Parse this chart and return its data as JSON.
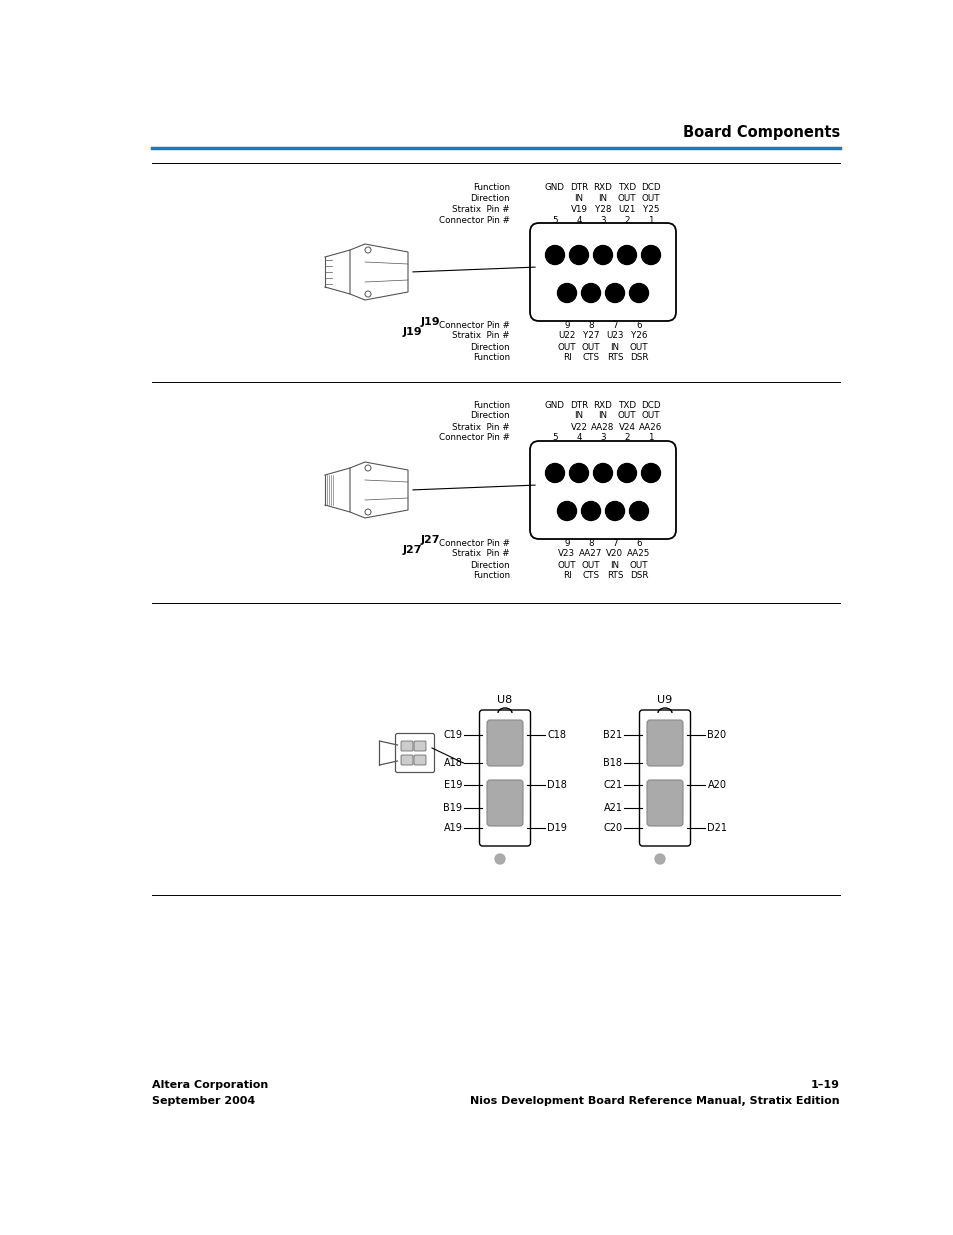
{
  "bg_color": "#ffffff",
  "header_title": "Board Components",
  "header_line_color": "#1a7abf",
  "footer_left_line1": "Altera Corporation",
  "footer_left_line2": "September 2004",
  "footer_right_line1": "1–19",
  "footer_right_line2": "Nios Development Board Reference Manual, Stratix Edition",
  "j19_label": "J19",
  "j27_label": "J27",
  "j19_top": {
    "fn": [
      "GND",
      "DTR",
      "RXD",
      "TXD",
      "DCD"
    ],
    "dir": [
      "",
      "IN",
      "IN",
      "OUT",
      "OUT"
    ],
    "sp": [
      "",
      "V19",
      "Y28",
      "U21",
      "Y25"
    ],
    "cp": [
      "5",
      "4",
      "3",
      "2",
      "1"
    ]
  },
  "j19_bot": {
    "cp": [
      "9",
      "8",
      "7",
      "6"
    ],
    "sp": [
      "U22",
      "Y27",
      "U23",
      "Y26"
    ],
    "dir": [
      "OUT",
      "OUT",
      "IN",
      "OUT"
    ],
    "fn": [
      "RI",
      "CTS",
      "RTS",
      "DSR"
    ]
  },
  "j27_top": {
    "fn": [
      "GND",
      "DTR",
      "RXD",
      "TXD",
      "DCD"
    ],
    "dir": [
      "",
      "IN",
      "IN",
      "OUT",
      "OUT"
    ],
    "sp": [
      "",
      "V22",
      "AA28",
      "V24",
      "AA26"
    ],
    "cp": [
      "5",
      "4",
      "3",
      "2",
      "1"
    ]
  },
  "j27_bot": {
    "cp": [
      "9",
      "8",
      "7",
      "6"
    ],
    "sp": [
      "V23",
      "AA27",
      "V20",
      "AA25"
    ],
    "dir": [
      "OUT",
      "OUT",
      "IN",
      "OUT"
    ],
    "fn": [
      "RI",
      "CTS",
      "RTS",
      "DSR"
    ]
  },
  "seg_u8": "U8",
  "seg_u9": "U9",
  "u8_left": [
    "C19",
    "A18",
    "E19",
    "B19",
    "A19"
  ],
  "u8_right": [
    "C18",
    "D18",
    "D19"
  ],
  "u9_left": [
    "B21",
    "B18",
    "C21",
    "A21",
    "C20"
  ],
  "u9_right": [
    "B20",
    "A20",
    "D21"
  ]
}
